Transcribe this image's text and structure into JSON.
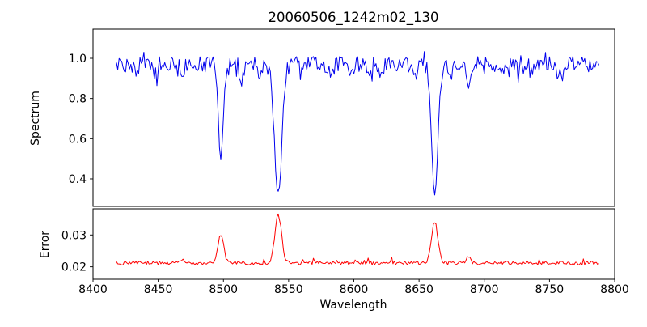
{
  "figure": {
    "title": "20060506_1242m02_130",
    "xlabel": "Wavelength",
    "background_color": "#ffffff"
  },
  "axes": {
    "xlim": [
      8400,
      8800
    ],
    "xtick_labels": [
      "8400",
      "8450",
      "8500",
      "8550",
      "8600",
      "8650",
      "8700",
      "8750",
      "8800"
    ]
  },
  "seed": 42,
  "chart_data": [
    {
      "type": "line",
      "name": "spectrum",
      "ylabel": "Spectrum",
      "color": "#0000ee",
      "xlim": [
        8400,
        8800
      ],
      "ylim": [
        0.263,
        1.145
      ],
      "ytick_labels": [
        "0.4",
        "0.6",
        "0.8",
        "1.0"
      ],
      "x_start": 8418,
      "x_end": 8788,
      "x_step": 1,
      "continuum": 0.97,
      "noise_amplitude": 0.08,
      "absorption_lines": [
        {
          "center": 8498,
          "depth": 0.5,
          "width": 1.8
        },
        {
          "center": 8542,
          "depth": 0.68,
          "width": 2.8
        },
        {
          "center": 8662,
          "depth": 0.66,
          "width": 2.4
        }
      ],
      "minor_lines": [
        {
          "center": 8433,
          "depth": 0.06,
          "width": 1.4
        },
        {
          "center": 8448,
          "depth": 0.05,
          "width": 1.2
        },
        {
          "center": 8468,
          "depth": 0.09,
          "width": 1.5
        },
        {
          "center": 8514,
          "depth": 0.08,
          "width": 1.4
        },
        {
          "center": 8527,
          "depth": 0.07,
          "width": 1.3
        },
        {
          "center": 8583,
          "depth": 0.07,
          "width": 1.4
        },
        {
          "center": 8598,
          "depth": 0.06,
          "width": 1.3
        },
        {
          "center": 8611,
          "depth": 0.05,
          "width": 1.3
        },
        {
          "center": 8621,
          "depth": 0.05,
          "width": 1.2
        },
        {
          "center": 8648,
          "depth": 0.06,
          "width": 1.3
        },
        {
          "center": 8674,
          "depth": 0.08,
          "width": 1.4
        },
        {
          "center": 8688,
          "depth": 0.1,
          "width": 1.5
        },
        {
          "center": 8713,
          "depth": 0.06,
          "width": 1.3
        },
        {
          "center": 8736,
          "depth": 0.05,
          "width": 1.2
        },
        {
          "center": 8757,
          "depth": 0.06,
          "width": 1.3
        }
      ]
    },
    {
      "type": "line",
      "name": "error",
      "ylabel": "Error",
      "color": "#ff0000",
      "xlim": [
        8400,
        8800
      ],
      "ylim": [
        0.0161,
        0.0382
      ],
      "ytick_labels": [
        "0.02",
        "0.03"
      ],
      "baseline": 0.0212,
      "noise_amplitude": 0.0012,
      "peaks": [
        {
          "center": 8498,
          "height": 0.009,
          "width": 2.2
        },
        {
          "center": 8542,
          "height": 0.015,
          "width": 2.6
        },
        {
          "center": 8662,
          "height": 0.013,
          "width": 2.4
        }
      ],
      "minor_peaks": [
        {
          "center": 8468,
          "height": 0.001,
          "width": 1.6
        },
        {
          "center": 8688,
          "height": 0.0018,
          "width": 1.6
        }
      ]
    }
  ]
}
